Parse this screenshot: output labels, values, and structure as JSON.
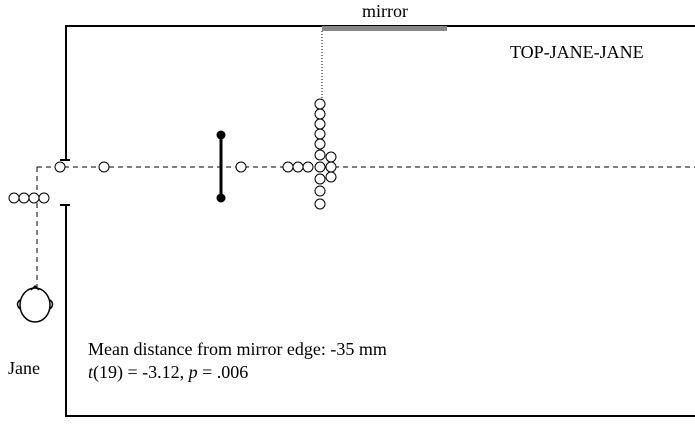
{
  "mirror_label": "mirror",
  "condition": "TOP-JANE-JANE",
  "observer": "Jane",
  "summary": "Mean distance from mirror edge: -35 mm",
  "stats": {
    "t_symbol": "t",
    "t_rest": "(19) = -3.12, ",
    "p_symbol": "p",
    "p_rest": " = .006"
  }
}
